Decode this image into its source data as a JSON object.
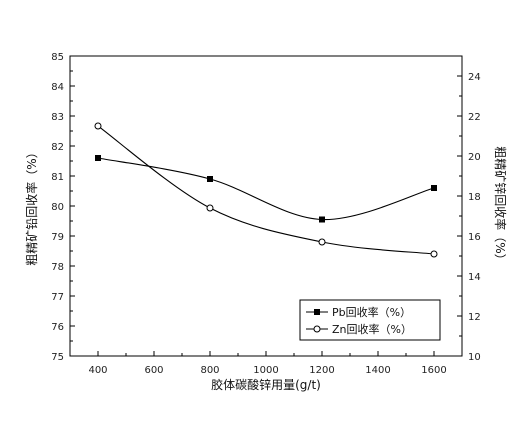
{
  "chart_data": {
    "type": "line",
    "x": [
      400,
      800,
      1200,
      1600
    ],
    "xlabel": "胶体碳酸锌用量(g/t)",
    "xlim": [
      300,
      1700
    ],
    "xticks": [
      400,
      600,
      800,
      1000,
      1200,
      1400,
      1600
    ],
    "ylabel_left": "粗精矿铅回收率（%）",
    "ylim_left": [
      75,
      85
    ],
    "yticks_left": [
      75,
      76,
      77,
      78,
      79,
      80,
      81,
      82,
      83,
      84,
      85
    ],
    "ylabel_right": "粗精矿锌回收率（%）",
    "ylim_right": [
      10,
      25
    ],
    "yticks_right": [
      10,
      12,
      14,
      16,
      18,
      20,
      22,
      24
    ],
    "series": [
      {
        "name": "Pb回收率（%）",
        "axis": "left",
        "marker": "filled-square",
        "values": [
          81.6,
          80.9,
          79.55,
          80.6
        ]
      },
      {
        "name": "Zn回收率（%）",
        "axis": "right",
        "marker": "open-circle",
        "values": [
          21.5,
          17.4,
          15.7,
          15.1
        ]
      }
    ],
    "legend_position": "bottom-right",
    "grid": false,
    "colors": {
      "line": "#000000",
      "background": "#ffffff"
    }
  }
}
